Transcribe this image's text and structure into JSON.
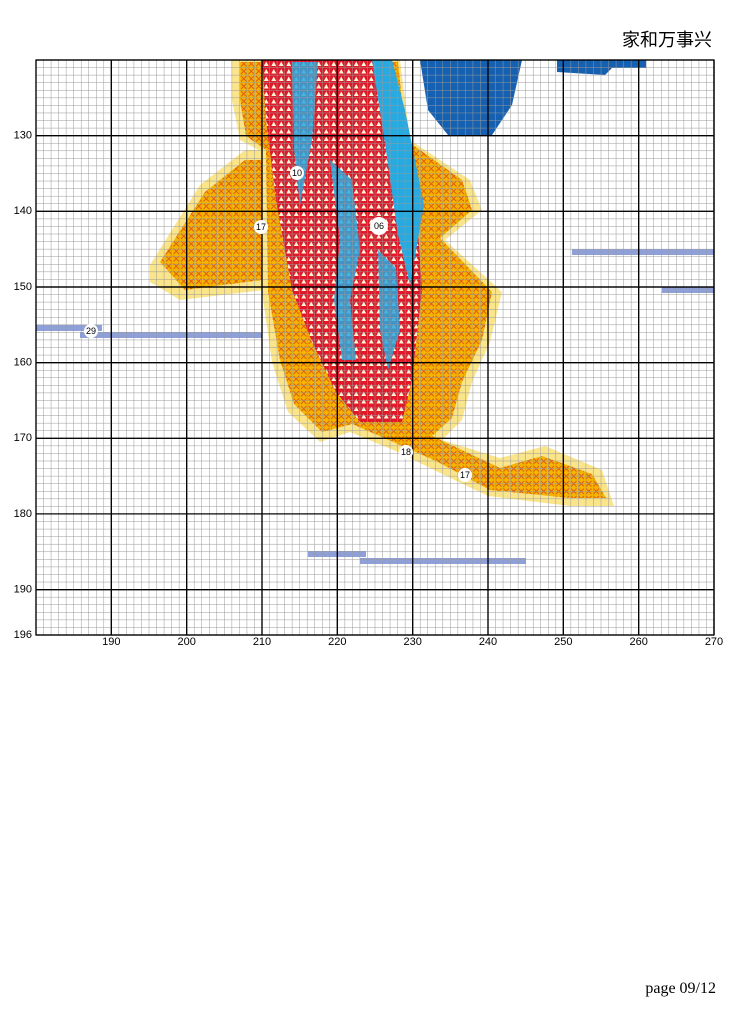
{
  "header": {
    "title": "家和万事兴"
  },
  "grid": {
    "xlim": [
      180,
      270
    ],
    "ylim": [
      120,
      196
    ],
    "column_labels": [
      190,
      200,
      210,
      220,
      230,
      240,
      250,
      260,
      270
    ],
    "row_labels": [
      130,
      140,
      150,
      160,
      170,
      180,
      190,
      196
    ]
  },
  "symbols": [
    {
      "label": "10"
    },
    {
      "label": "17"
    },
    {
      "label": "06"
    },
    {
      "label": "29"
    },
    {
      "label": "18"
    },
    {
      "label": "17"
    }
  ],
  "footer": {
    "page": "page 09/12"
  }
}
